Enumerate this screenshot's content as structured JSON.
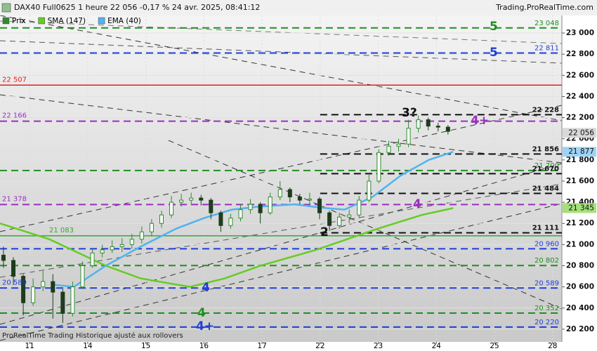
{
  "header": {
    "title": "DAX40 Full0625 1 heure 22 056 -0,17 % 24 avr. 2025, 08:41:12",
    "source": "Trading.ProRealTime.com",
    "footer": "ProRealTime Trading  Historique ajusté aux rollovers"
  },
  "chart_data": {
    "type": "candlestick",
    "xlim": [
      -0.51,
      9.16
    ],
    "xticks": [
      {
        "value": 0,
        "label": "11"
      },
      {
        "value": 1,
        "label": "14"
      },
      {
        "value": 2,
        "label": "15"
      },
      {
        "value": 3,
        "label": "16"
      },
      {
        "value": 4,
        "label": "17"
      },
      {
        "value": 5,
        "label": "22"
      },
      {
        "value": 6,
        "label": "23"
      },
      {
        "value": 7,
        "label": "24"
      },
      {
        "value": 8,
        "label": "25"
      },
      {
        "value": 9,
        "label": "28"
      }
    ],
    "ylim": [
      20080,
      23166
    ],
    "yticks": [
      {
        "value": 23000,
        "label": "23 000"
      },
      {
        "value": 22800,
        "label": "22 800"
      },
      {
        "value": 22600,
        "label": "22 600"
      },
      {
        "value": 22400,
        "label": "22 400"
      },
      {
        "value": 22200,
        "label": "22 200"
      },
      {
        "value": 22000,
        "label": "22 000"
      },
      {
        "value": 21800,
        "label": "21 800"
      },
      {
        "value": 21600,
        "label": "21 600"
      },
      {
        "value": 21400,
        "label": "21 400"
      },
      {
        "value": 21200,
        "label": "21 200"
      },
      {
        "value": 21000,
        "label": "21 000"
      },
      {
        "value": 20800,
        "label": "20 800"
      },
      {
        "value": 20600,
        "label": "20 600"
      },
      {
        "value": 20400,
        "label": "20 400"
      },
      {
        "value": 20200,
        "label": "20 200"
      }
    ],
    "grid": true,
    "candles": {
      "name": "Prix",
      "up_color": "#2e8b2e",
      "down_color": "#1d3d1d",
      "x": [
        -0.45,
        -0.28,
        -0.11,
        0.06,
        0.23,
        0.4,
        0.57,
        0.74,
        0.91,
        1.08,
        1.25,
        1.42,
        1.59,
        1.76,
        1.93,
        2.1,
        2.27,
        2.44,
        2.61,
        2.78,
        2.95,
        3.12,
        3.29,
        3.46,
        3.63,
        3.8,
        3.97,
        4.14,
        4.31,
        4.48,
        4.65,
        4.82,
        4.99,
        5.16,
        5.33,
        5.5,
        5.67,
        5.84,
        6.01,
        6.18,
        6.35,
        6.52,
        6.69,
        6.86,
        7.03,
        7.2
      ],
      "open": [
        20900,
        20850,
        20700,
        20450,
        20600,
        20650,
        20550,
        20350,
        20600,
        20800,
        20920,
        20950,
        20980,
        21000,
        21050,
        21120,
        21200,
        21280,
        21400,
        21420,
        21440,
        21420,
        21300,
        21180,
        21250,
        21330,
        21380,
        21300,
        21450,
        21520,
        21450,
        21420,
        21430,
        21300,
        21180,
        21260,
        21280,
        21420,
        21600,
        21870,
        21930,
        21950,
        22100,
        22180,
        22120,
        22110
      ],
      "high": [
        20980,
        20880,
        20720,
        20680,
        20750,
        20720,
        20580,
        20650,
        20840,
        20960,
        21000,
        21040,
        21060,
        21100,
        21170,
        21240,
        21320,
        21460,
        21480,
        21490,
        21470,
        21440,
        21320,
        21290,
        21380,
        21430,
        21400,
        21490,
        21600,
        21540,
        21480,
        21490,
        21450,
        21320,
        21300,
        21330,
        21460,
        21660,
        21900,
        21980,
        22000,
        22180,
        22220,
        22200,
        22150,
        22130
      ],
      "low": [
        20780,
        20620,
        20330,
        20420,
        20560,
        20300,
        20260,
        20320,
        20580,
        20780,
        20880,
        20920,
        20930,
        20960,
        21010,
        21080,
        21160,
        21250,
        21360,
        21380,
        21370,
        21240,
        21120,
        21150,
        21220,
        21290,
        21200,
        21280,
        21420,
        21400,
        21380,
        21380,
        21240,
        21130,
        21150,
        21200,
        21250,
        21400,
        21580,
        21840,
        21880,
        21920,
        22060,
        22080,
        22070,
        22040
      ],
      "close": [
        20850,
        20700,
        20450,
        20600,
        20650,
        20550,
        20350,
        20600,
        20800,
        20920,
        20950,
        20980,
        21000,
        21050,
        21120,
        21200,
        21280,
        21400,
        21420,
        21440,
        21420,
        21300,
        21180,
        21250,
        21330,
        21380,
        21300,
        21450,
        21520,
        21450,
        21420,
        21430,
        21300,
        21180,
        21260,
        21280,
        21420,
        21600,
        21870,
        21930,
        21950,
        22100,
        22180,
        22120,
        22110,
        22070
      ]
    },
    "series": [
      {
        "name": "SMA (147)",
        "color": "#66cc22",
        "x": [
          -0.51,
          0.34,
          1.31,
          1.91,
          2.76,
          3.36,
          3.97,
          4.93,
          5.99,
          6.75,
          7.29
        ],
        "values": [
          21200,
          21050,
          20800,
          20680,
          20600,
          20680,
          20800,
          20950,
          21150,
          21280,
          21345
        ]
      },
      {
        "name": "EMA (40)",
        "color": "#4fb3f0",
        "x": [
          0.4,
          0.76,
          1.31,
          1.91,
          2.52,
          3.0,
          3.48,
          3.97,
          4.57,
          4.99,
          5.42,
          5.9,
          6.38,
          6.87,
          7.29
        ],
        "values": [
          20620,
          20600,
          20800,
          20980,
          21150,
          21250,
          21330,
          21360,
          21380,
          21350,
          21330,
          21450,
          21650,
          21800,
          21877
        ]
      }
    ],
    "levels": [
      {
        "value": 23048,
        "label": "23 048",
        "color": "#1f8f1f",
        "style": "dashed",
        "label_side": "right"
      },
      {
        "value": 22811,
        "label": "22 811",
        "color": "#1f3fd8",
        "style": "dashed",
        "label_side": "right"
      },
      {
        "value": 22507,
        "label": "22 507",
        "color": "#e02020",
        "style": "solid",
        "label_side": "left"
      },
      {
        "value": 22228,
        "label": "22 228",
        "color": "#111111",
        "style": "dashed",
        "label_side": "right",
        "x_start": 5
      },
      {
        "value": 22166,
        "label": "22 166",
        "color": "#9b30c0",
        "style": "dashed",
        "label_side": "left"
      },
      {
        "value": 21856,
        "label": "21 856",
        "color": "#111111",
        "style": "dashed",
        "label_side": "right",
        "x_start": 5
      },
      {
        "value": 21700,
        "label": "21 700",
        "color": "#1f8f1f",
        "style": "dashed",
        "label_side": "right"
      },
      {
        "value": 21670,
        "label": "21 670",
        "color": "#111111",
        "style": "dashed",
        "label_side": "right",
        "x_start": 5
      },
      {
        "value": 21484,
        "label": "21 484",
        "color": "#111111",
        "style": "dashed",
        "label_side": "right",
        "x_start": 5
      },
      {
        "value": 21378,
        "label": "21 378",
        "color": "#9b30c0",
        "style": "dashed",
        "label_side": "left"
      },
      {
        "value": 21111,
        "label": "21 111",
        "color": "#111111",
        "style": "dashed",
        "label_side": "right",
        "x_start": 5
      },
      {
        "value": 21083,
        "label": "21 083",
        "color": "#33aa33",
        "style": "solid",
        "label_side": "left"
      },
      {
        "value": 20960,
        "label": "20 960",
        "color": "#1f3fd8",
        "style": "dashed",
        "label_side": "right"
      },
      {
        "value": 20802,
        "label": "20 802",
        "color": "#1f8f1f",
        "style": "dashed",
        "label_side": "right"
      },
      {
        "value": 20589,
        "label": "20 589",
        "color": "#1f3fd8",
        "style": "dashed",
        "label_side": "both"
      },
      {
        "value": 20352,
        "label": "20 352",
        "color": "#1f8f1f",
        "style": "dashed",
        "label_side": "right"
      },
      {
        "value": 20220,
        "label": "20 220",
        "color": "#1f3fd8",
        "style": "dashed",
        "label_side": "right"
      }
    ],
    "markers": [
      {
        "value": 22056,
        "label": "22 056",
        "color": "#d8d8d8"
      },
      {
        "value": 21877,
        "label": "21 877",
        "color": "#9fd3f5"
      },
      {
        "value": 21345,
        "label": "21 345",
        "color": "#a6e07a"
      }
    ]
  },
  "annotations": [
    {
      "text": "5"
    },
    {
      "text": "5"
    },
    {
      "text": "3?"
    },
    {
      "text": "4+"
    },
    {
      "text": "4"
    },
    {
      "text": "2"
    },
    {
      "text": "4"
    },
    {
      "text": "4"
    },
    {
      "text": "4+"
    }
  ]
}
